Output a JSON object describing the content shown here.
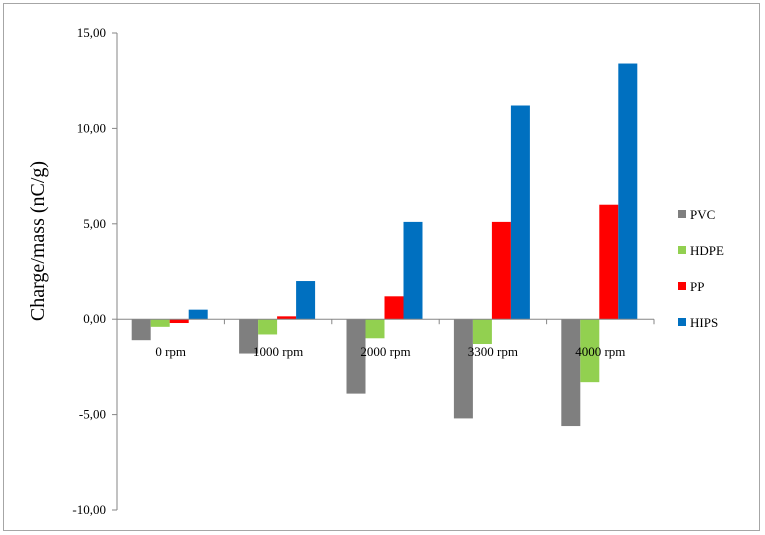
{
  "chart_data": {
    "type": "bar",
    "ylabel": "Charge/mass  (nC/g)",
    "xlabel": "",
    "ylim": [
      -10,
      15
    ],
    "yticks": [
      15,
      10,
      5,
      0,
      -5,
      -10
    ],
    "ytick_labels": [
      "15,00",
      "10,00",
      "5,00",
      "0,00",
      "-5,00",
      "-10,00"
    ],
    "categories": [
      "0 rpm",
      "1000 rpm",
      "2000 rpm",
      "3300 rpm",
      "4000 rpm"
    ],
    "series": [
      {
        "name": "PVC",
        "color": "#7f7f7f",
        "values": [
          -1.1,
          -1.8,
          -3.9,
          -5.2,
          -5.6
        ]
      },
      {
        "name": "HDPE",
        "color": "#92d050",
        "values": [
          -0.4,
          -0.8,
          -1.0,
          -1.3,
          -3.3
        ]
      },
      {
        "name": "PP",
        "color": "#ff0000",
        "values": [
          -0.2,
          0.15,
          1.2,
          5.1,
          6.0
        ]
      },
      {
        "name": "HIPS",
        "color": "#0070c0",
        "values": [
          0.5,
          2.0,
          5.1,
          11.2,
          13.4
        ]
      }
    ],
    "legend_position": "right",
    "grid": false
  }
}
